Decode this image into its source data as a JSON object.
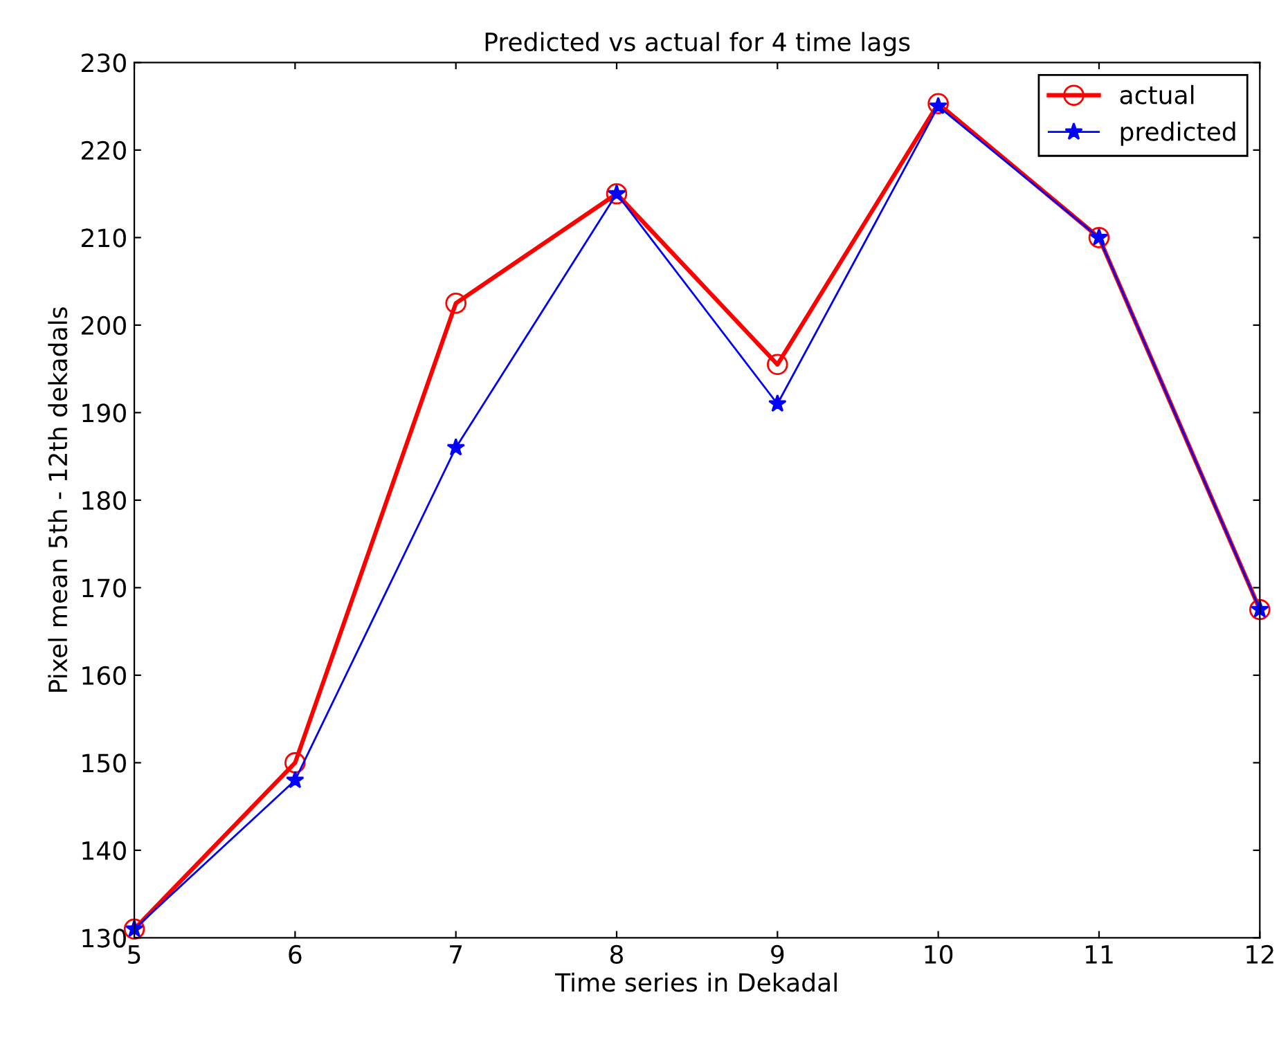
{
  "chart_data": {
    "type": "line",
    "title": "Predicted vs actual for 4 time lags",
    "xlabel": "Time series in Dekadal",
    "ylabel": "Pixel mean 5th - 12th dekadals",
    "x": [
      5,
      6,
      7,
      8,
      9,
      10,
      11,
      12
    ],
    "series": [
      {
        "name": "actual",
        "color": "#ff0000",
        "marker": "circle",
        "values": [
          131,
          150,
          202.5,
          215,
          195.5,
          225.3,
          210,
          167.5
        ]
      },
      {
        "name": "predicted",
        "color": "#0000ff",
        "marker": "star",
        "values": [
          131,
          148,
          186,
          215,
          191,
          225,
          210,
          167.5
        ]
      }
    ],
    "xlim": [
      5,
      12
    ],
    "xticks": [
      5,
      6,
      7,
      8,
      9,
      10,
      11,
      12
    ],
    "ylim": [
      130,
      230
    ],
    "yticks": [
      130,
      140,
      150,
      160,
      170,
      180,
      190,
      200,
      210,
      220,
      230
    ],
    "grid": false,
    "legend": "top right",
    "line_style": "solid"
  }
}
